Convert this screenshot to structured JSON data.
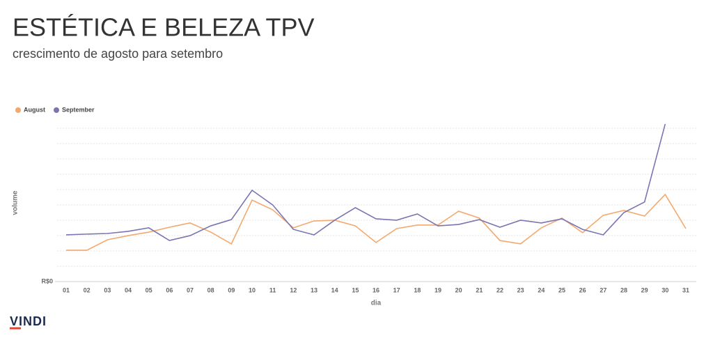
{
  "chart_data": {
    "type": "line",
    "title": "ESTÉTICA E BELEZA TPV",
    "subtitle": "crescimento de agosto para setembro",
    "y_label": "volume",
    "x_label": "dia",
    "brand": "VINDI",
    "legend": "top-left",
    "categories": [
      "01",
      "02",
      "03",
      "04",
      "05",
      "06",
      "07",
      "08",
      "09",
      "10",
      "11",
      "12",
      "13",
      "14",
      "15",
      "16",
      "17",
      "18",
      "19",
      "20",
      "21",
      "22",
      "23",
      "24",
      "25",
      "26",
      "27",
      "28",
      "29",
      "30",
      "31"
    ],
    "series": [
      {
        "name": "August",
        "color": "#f4a86c",
        "values": [
          2.05,
          2.05,
          2.74,
          3.01,
          3.24,
          3.56,
          3.84,
          3.24,
          2.47,
          5.34,
          4.7,
          3.52,
          3.97,
          4.02,
          3.65,
          2.56,
          3.47,
          3.7,
          3.7,
          4.61,
          4.16,
          2.69,
          2.47,
          3.52,
          4.16,
          3.2,
          4.34,
          4.66,
          4.29,
          5.71,
          3.47
        ]
      },
      {
        "name": "September",
        "color": "#7b74b1",
        "values": [
          3.06,
          3.11,
          3.15,
          3.29,
          3.52,
          2.69,
          3.01,
          3.65,
          4.06,
          5.98,
          5.02,
          3.42,
          3.06,
          4.02,
          4.84,
          4.11,
          4.02,
          4.43,
          3.65,
          3.74,
          4.06,
          3.56,
          4.02,
          3.84,
          4.11,
          3.42,
          3.06,
          4.52,
          5.21,
          10.32,
          null
        ]
      }
    ],
    "ylim": [
      0,
      10.5
    ],
    "yticks": [
      {
        "value": 0,
        "label": "R$0"
      }
    ]
  }
}
